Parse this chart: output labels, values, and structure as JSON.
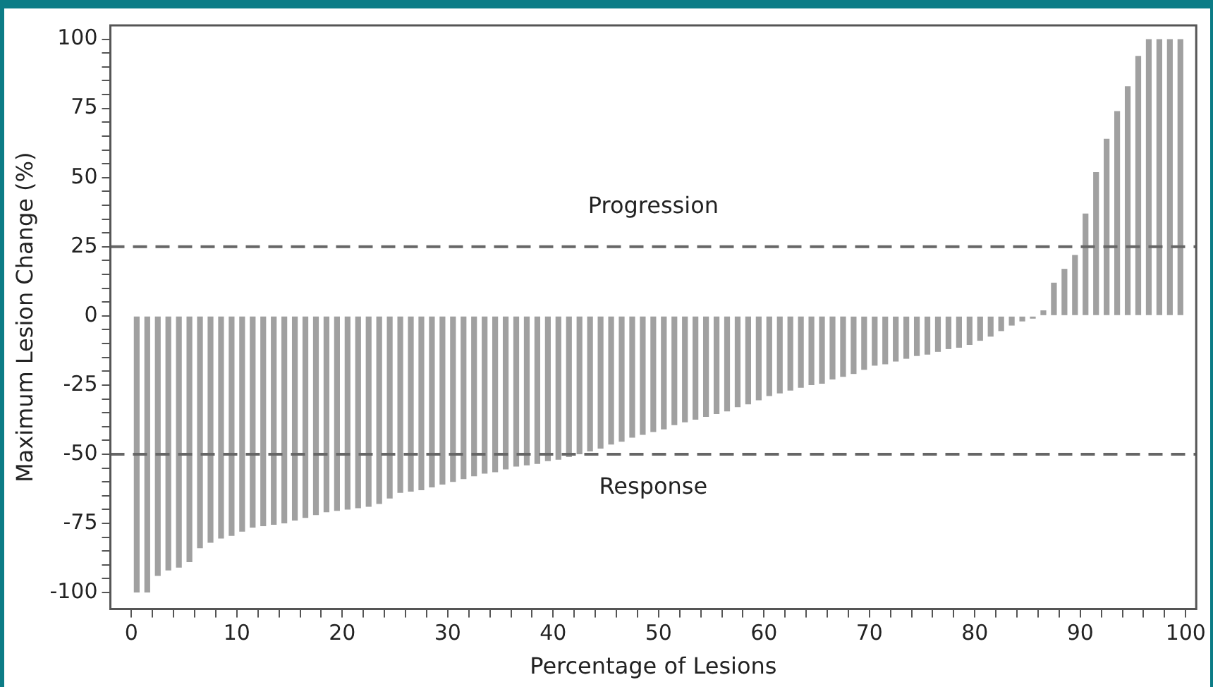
{
  "chart_data": {
    "type": "bar",
    "xlabel": "Percentage of Lesions",
    "ylabel": "Maximum Lesion Change (%)",
    "color": "#a0a0a0",
    "x": [
      0.5,
      1.5,
      2.5,
      3.5,
      4.5,
      5.5,
      6.5,
      7.5,
      8.5,
      9.5,
      10.5,
      11.5,
      12.5,
      13.5,
      14.5,
      15.5,
      16.5,
      17.5,
      18.5,
      19.5,
      20.5,
      21.5,
      22.5,
      23.5,
      24.5,
      25.5,
      26.5,
      27.5,
      28.5,
      29.5,
      30.5,
      31.5,
      32.5,
      33.5,
      34.5,
      35.5,
      36.5,
      37.5,
      38.5,
      39.5,
      40.5,
      41.5,
      42.5,
      43.5,
      44.5,
      45.5,
      46.5,
      47.5,
      48.5,
      49.5,
      50.5,
      51.5,
      52.5,
      53.5,
      54.5,
      55.5,
      56.5,
      57.5,
      58.5,
      59.5,
      60.5,
      61.5,
      62.5,
      63.5,
      64.5,
      65.5,
      66.5,
      67.5,
      68.5,
      69.5,
      70.5,
      71.5,
      72.5,
      73.5,
      74.5,
      75.5,
      76.5,
      77.5,
      78.5,
      79.5,
      80.5,
      81.5,
      82.5,
      83.5,
      84.5,
      85.5,
      86.5,
      87.5,
      88.5,
      89.5,
      90.5,
      91.5,
      92.5,
      93.5,
      94.5,
      95.5,
      96.5,
      97.5,
      98.5,
      99.5
    ],
    "values": [
      -100,
      -100,
      -94,
      -92,
      -91,
      -89,
      -84,
      -82,
      -80.5,
      -79.5,
      -78,
      -76.5,
      -76,
      -75.5,
      -75,
      -74,
      -73,
      -72,
      -71,
      -70.5,
      -70,
      -69.5,
      -69,
      -68,
      -66,
      -64,
      -63.5,
      -63,
      -62,
      -61,
      -60,
      -59,
      -58,
      -57,
      -56.5,
      -55.5,
      -54.5,
      -54,
      -53.5,
      -52.5,
      -52,
      -51,
      -50,
      -49,
      -48,
      -46.5,
      -45.5,
      -44,
      -43,
      -42,
      -41,
      -39.5,
      -38.5,
      -37.5,
      -36.5,
      -35.5,
      -34.5,
      -33,
      -32,
      -30.5,
      -29,
      -28,
      -27,
      -26,
      -25,
      -24.5,
      -23,
      -22,
      -21,
      -19.5,
      -18,
      -17.5,
      -16.5,
      -15.5,
      -14.5,
      -14,
      -13,
      -12,
      -11.5,
      -10.5,
      -9,
      -7.5,
      -5.5,
      -3.5,
      -2,
      -1,
      2,
      12,
      17,
      22,
      37,
      52,
      64,
      74,
      83,
      94,
      100,
      100,
      100,
      100
    ],
    "xlim": [
      -2,
      101
    ],
    "ylim": [
      -106,
      105
    ],
    "xticks": [
      0,
      {
        "value": 2,
        "label": null
      },
      {
        "value": 4,
        "label": null
      },
      {
        "value": 6,
        "label": null
      },
      {
        "value": 8,
        "label": null
      },
      10,
      {
        "value": 12,
        "label": null
      },
      {
        "value": 14,
        "label": null
      },
      {
        "value": 16,
        "label": null
      },
      {
        "value": 18,
        "label": null
      },
      20,
      {
        "value": 22,
        "label": null
      },
      {
        "value": 24,
        "label": null
      },
      {
        "value": 26,
        "label": null
      },
      {
        "value": 28,
        "label": null
      },
      30,
      {
        "value": 32,
        "label": null
      },
      {
        "value": 34,
        "label": null
      },
      {
        "value": 36,
        "label": null
      },
      {
        "value": 38,
        "label": null
      },
      40,
      {
        "value": 42,
        "label": null
      },
      {
        "value": 44,
        "label": null
      },
      {
        "value": 46,
        "label": null
      },
      {
        "value": 48,
        "label": null
      },
      50,
      {
        "value": 52,
        "label": null
      },
      {
        "value": 54,
        "label": null
      },
      {
        "value": 56,
        "label": null
      },
      {
        "value": 58,
        "label": null
      },
      60,
      {
        "value": 62,
        "label": null
      },
      {
        "value": 64,
        "label": null
      },
      {
        "value": 66,
        "label": null
      },
      {
        "value": 68,
        "label": null
      },
      70,
      {
        "value": 72,
        "label": null
      },
      {
        "value": 74,
        "label": null
      },
      {
        "value": 76,
        "label": null
      },
      {
        "value": 78,
        "label": null
      },
      80,
      {
        "value": 82,
        "label": null
      },
      {
        "value": 84,
        "label": null
      },
      {
        "value": 86,
        "label": null
      },
      {
        "value": 88,
        "label": null
      },
      90,
      {
        "value": 92,
        "label": null
      },
      {
        "value": 94,
        "label": null
      },
      {
        "value": 96,
        "label": null
      },
      {
        "value": 98,
        "label": null
      },
      100
    ],
    "yticks": [
      -100,
      {
        "value": -95,
        "label": null
      },
      {
        "value": -90,
        "label": null
      },
      {
        "value": -85,
        "label": null
      },
      {
        "value": -80,
        "label": null
      },
      -75,
      {
        "value": -70,
        "label": null
      },
      {
        "value": -65,
        "label": null
      },
      {
        "value": -60,
        "label": null
      },
      {
        "value": -55,
        "label": null
      },
      -50,
      {
        "value": -45,
        "label": null
      },
      {
        "value": -40,
        "label": null
      },
      {
        "value": -35,
        "label": null
      },
      {
        "value": -30,
        "label": null
      },
      -25,
      {
        "value": -20,
        "label": null
      },
      {
        "value": -15,
        "label": null
      },
      {
        "value": -10,
        "label": null
      },
      {
        "value": -5,
        "label": null
      },
      0,
      {
        "value": 5,
        "label": null
      },
      {
        "value": 10,
        "label": null
      },
      {
        "value": 15,
        "label": null
      },
      {
        "value": 20,
        "label": null
      },
      25,
      {
        "value": 30,
        "label": null
      },
      {
        "value": 35,
        "label": null
      },
      {
        "value": 40,
        "label": null
      },
      {
        "value": 45,
        "label": null
      },
      50,
      {
        "value": 55,
        "label": null
      },
      {
        "value": 60,
        "label": null
      },
      {
        "value": 65,
        "label": null
      },
      {
        "value": 70,
        "label": null
      },
      75,
      {
        "value": 80,
        "label": null
      },
      {
        "value": 85,
        "label": null
      },
      {
        "value": 90,
        "label": null
      },
      {
        "value": 95,
        "label": null
      },
      100
    ],
    "ref_lines": [
      {
        "axis": "y",
        "value": 25,
        "line_style": "dashed",
        "color": "#666666"
      },
      {
        "axis": "y",
        "value": -50,
        "line_style": "dashed",
        "color": "#666666"
      }
    ],
    "annotations": [
      "Progression",
      "Response"
    ]
  }
}
